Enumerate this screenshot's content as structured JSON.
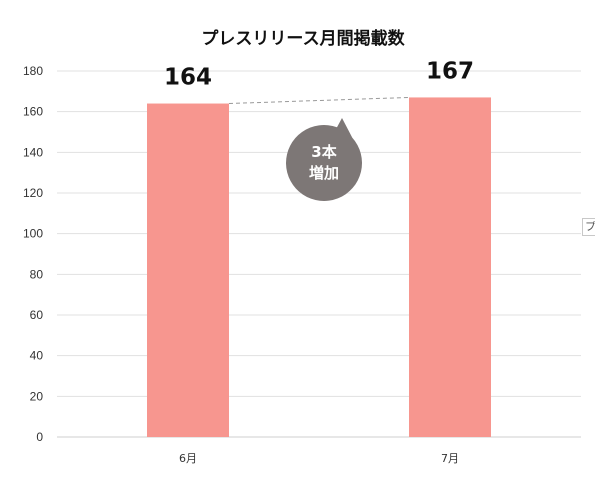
{
  "chart_data": {
    "type": "bar",
    "title": "プレスリリース月間掲載数",
    "categories": [
      "6月",
      "7月"
    ],
    "values": [
      164,
      167
    ],
    "ylim": [
      0,
      180
    ],
    "yticks": [
      0,
      20,
      40,
      60,
      80,
      100,
      120,
      140,
      160,
      180
    ],
    "grid": true,
    "bar_color": "#f7968f",
    "annotation": {
      "line1": "3本",
      "line2": "増加",
      "color": "#7d7776"
    }
  },
  "edge_tab": {
    "label": "プ"
  }
}
